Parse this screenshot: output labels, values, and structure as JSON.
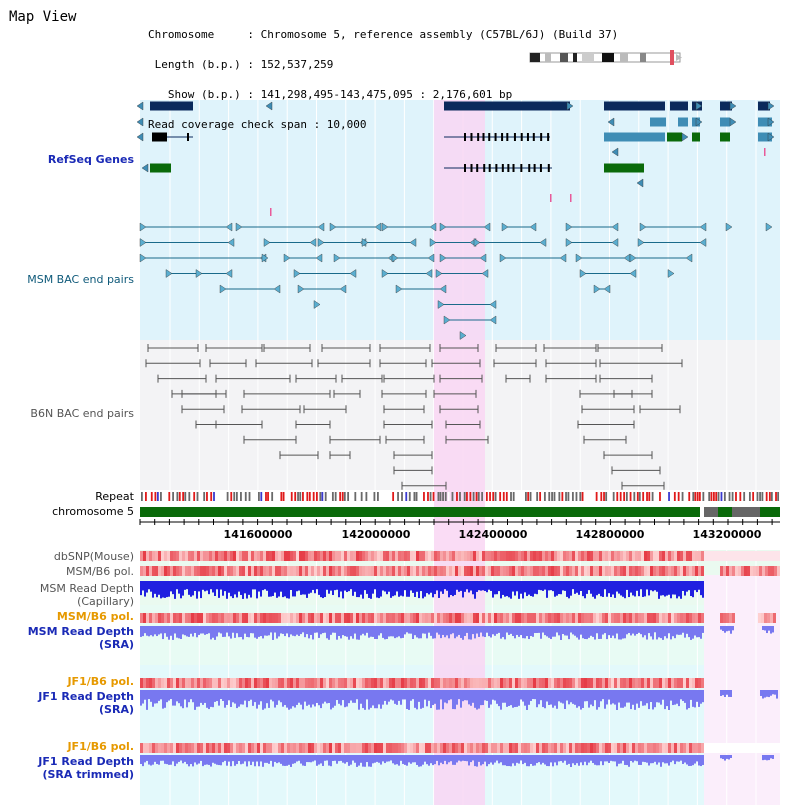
{
  "map_view_title": "Map View",
  "info": {
    "chromosome_line": "Chromosome     : Chromosome 5, reference assembly (C57BL/6J) (Build 37)",
    "length_line": " Length (b.p.) : 152,537,259",
    "show_line": "   Show (b.p.) : 141,298,495-143,475,095 : 2,176,601 bp",
    "coverage_line": "Read coverage check span : 10,000"
  },
  "tracks": {
    "refseq_genes": "RefSeq Genes",
    "msm_bac": "MSM BAC end pairs",
    "b6n_bac": "B6N BAC end pairs",
    "repeat": "Repeat",
    "chromosome": "chromosome 5",
    "dbsnp": "dbSNP(Mouse)",
    "msm_b6_pol_1": "MSM/B6 pol.",
    "msm_read_depth_cap_1": "MSM Read Depth",
    "msm_read_depth_cap_2": "(Capillary)",
    "msm_b6_pol_2": "MSM/B6 pol.",
    "msm_read_depth_sra_1": "MSM Read Depth",
    "msm_read_depth_sra_2": "(SRA)",
    "jf1_b6_pol_1": "JF1/B6 pol.",
    "jf1_read_depth_sra_1": "JF1 Read Depth",
    "jf1_read_depth_sra_2": "(SRA)",
    "jf1_b6_pol_2": "JF1/B6 pol.",
    "jf1_read_depth_trim_1": "JF1 Read Depth",
    "jf1_read_depth_trim_2": "(SRA trimmed)"
  },
  "ruler": {
    "ticks": [
      "141600000",
      "142000000",
      "142400000",
      "142800000",
      "143200000"
    ]
  },
  "colors": {
    "refseq_bg": "#dff3fb",
    "bac_bg": "#dff3fb",
    "highlight": "#f9d6f3",
    "chromosome_bar": "#0a6a0a",
    "refseq_dark": "#0b2a5c",
    "refseq_mid": "#3f8db5",
    "refseq_green": "#0a6a0a",
    "bac_msm": "#1a6a8a",
    "bac_b6n": "#555555",
    "snp": "#f0646a",
    "depth_cap": "#2020e0",
    "depth_sra": "#7878f0"
  }
}
